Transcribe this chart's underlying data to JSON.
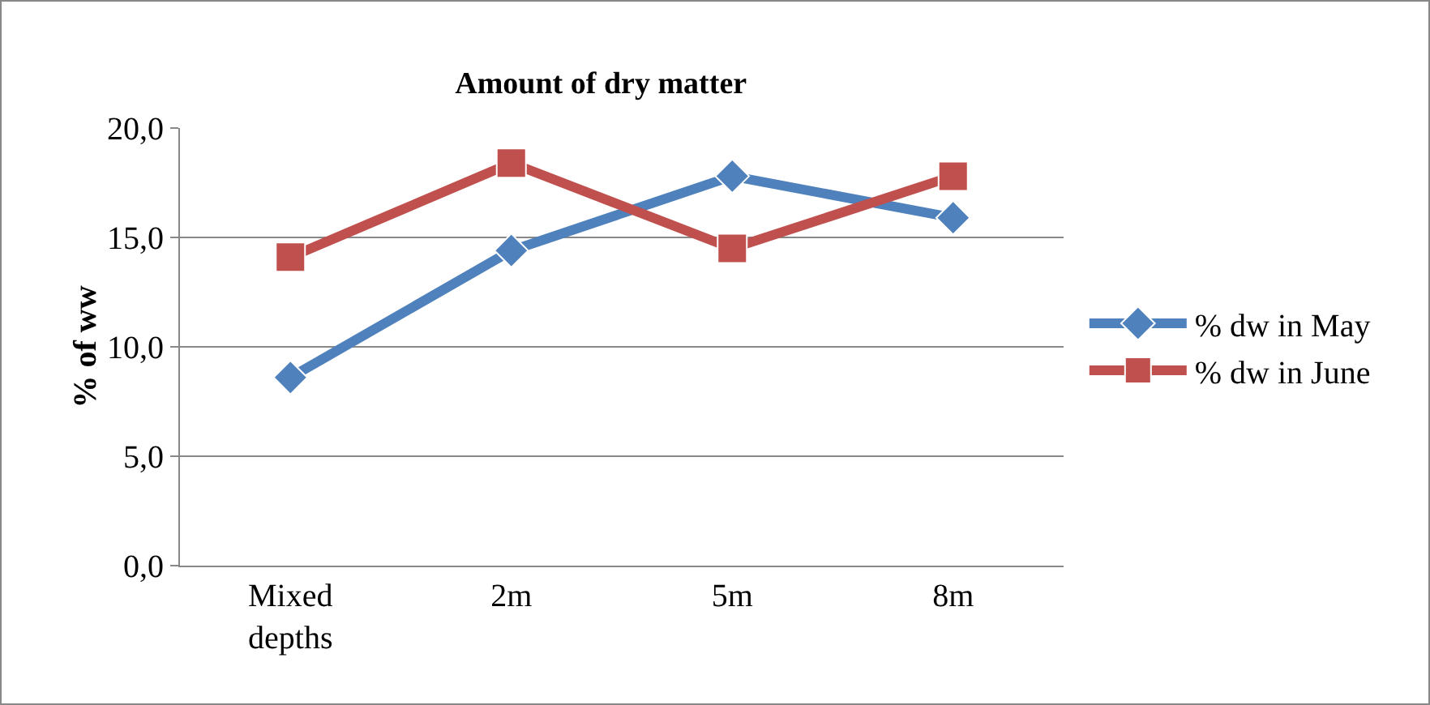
{
  "chart_data": {
    "type": "line",
    "title": "Amount of dry matter",
    "ylabel": "% of ww",
    "categories": [
      "Mixed depths",
      "2m",
      "5m",
      "8m"
    ],
    "series": [
      {
        "name": "% dw in May",
        "color": "#4f81bd",
        "marker": "diamond",
        "values": [
          8.6,
          14.4,
          17.8,
          15.9
        ]
      },
      {
        "name": "% dw in June",
        "color": "#c0504d",
        "marker": "square",
        "values": [
          14.1,
          18.4,
          14.5,
          17.8
        ]
      }
    ],
    "ylim": [
      0,
      20
    ],
    "yticks": [
      {
        "value": 0,
        "label": "0,0"
      },
      {
        "value": 5,
        "label": "5,0"
      },
      {
        "value": 10,
        "label": "10,0"
      },
      {
        "value": 15,
        "label": "15,0"
      },
      {
        "value": 20,
        "label": "20,0"
      }
    ],
    "grid": "y",
    "legend": "right",
    "line_style": "solid"
  }
}
